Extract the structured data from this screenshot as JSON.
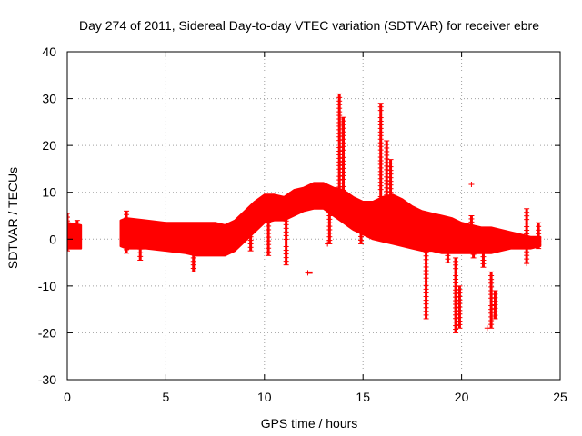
{
  "chart_data": {
    "type": "scatter",
    "title": "Day 274 of 2011, Sidereal Day-to-day VTEC variation (SDTVAR) for receiver ebre",
    "xlabel": "GPS time / hours",
    "ylabel": "SDTVAR / TECUs",
    "xlim": [
      0,
      25
    ],
    "ylim": [
      -30,
      40
    ],
    "xticks": [
      0,
      5,
      10,
      15,
      20,
      25
    ],
    "yticks": [
      -30,
      -20,
      -10,
      0,
      10,
      20,
      30,
      40
    ],
    "xtick_labels": [
      "0",
      "5",
      "10",
      "15",
      "20",
      "25"
    ],
    "ytick_labels": [
      "-30",
      "-20",
      "-10",
      "0",
      "10",
      "20",
      "30",
      "40"
    ],
    "grid": true,
    "marker": "+",
    "color": "#ff0000",
    "series": [
      {
        "name": "SDTVAR",
        "band": {
          "x": [
            0.0,
            0.7,
            2.7,
            3.0,
            4.0,
            5.0,
            6.0,
            6.5,
            7.0,
            7.5,
            8.0,
            8.5,
            9.0,
            9.5,
            10.0,
            10.5,
            11.0,
            11.5,
            12.0,
            12.5,
            13.0,
            13.5,
            14.0,
            14.5,
            15.0,
            15.5,
            16.0,
            16.5,
            17.0,
            17.5,
            18.0,
            18.5,
            19.0,
            19.5,
            20.0,
            20.5,
            21.0,
            21.5,
            22.0,
            22.5,
            23.0,
            23.5,
            24.0
          ],
          "upper": [
            3.5,
            3.0,
            4.0,
            4.5,
            4.0,
            3.5,
            3.5,
            3.5,
            3.5,
            3.5,
            3.0,
            4.0,
            6.0,
            8.0,
            9.5,
            9.5,
            9.0,
            10.5,
            11.0,
            12.0,
            12.0,
            11.0,
            10.5,
            9.0,
            8.0,
            8.0,
            9.0,
            9.5,
            8.5,
            7.0,
            6.0,
            5.5,
            5.0,
            4.5,
            3.5,
            3.0,
            2.5,
            2.5,
            2.0,
            1.5,
            1.0,
            0.5,
            0.5
          ],
          "lower": [
            -2.0,
            -2.0,
            -1.5,
            -2.0,
            -2.0,
            -2.5,
            -3.0,
            -3.5,
            -3.5,
            -3.5,
            -3.5,
            -2.5,
            -0.5,
            1.5,
            3.5,
            4.0,
            4.0,
            5.0,
            6.0,
            6.5,
            6.5,
            5.0,
            3.5,
            2.0,
            1.0,
            0.0,
            -0.5,
            -1.0,
            -1.5,
            -2.0,
            -2.5,
            -2.5,
            -3.0,
            -3.0,
            -3.0,
            -3.0,
            -3.0,
            -3.0,
            -2.5,
            -2.0,
            -2.0,
            -2.0,
            -1.5
          ]
        },
        "spikes": [
          {
            "x": 0.0,
            "ymin": -2.5,
            "ymax": 5.5
          },
          {
            "x": 0.5,
            "ymin": -1.0,
            "ymax": 4.0
          },
          {
            "x": 3.0,
            "ymin": -3.0,
            "ymax": 6.0
          },
          {
            "x": 3.7,
            "ymin": -4.5,
            "ymax": 3.5
          },
          {
            "x": 6.4,
            "ymin": -7.0,
            "ymax": 2.0
          },
          {
            "x": 9.3,
            "ymin": -2.5,
            "ymax": 6.5
          },
          {
            "x": 10.2,
            "ymin": -3.5,
            "ymax": 7.5
          },
          {
            "x": 11.1,
            "ymin": -5.5,
            "ymax": 7.0
          },
          {
            "x": 12.3,
            "ymin": -7.3,
            "ymax": -7.0
          },
          {
            "x": 13.3,
            "ymin": -1.0,
            "ymax": 9.5
          },
          {
            "x": 13.8,
            "ymin": 5.0,
            "ymax": 31.0
          },
          {
            "x": 14.0,
            "ymin": 5.0,
            "ymax": 26.0
          },
          {
            "x": 14.9,
            "ymin": -1.0,
            "ymax": 6.0
          },
          {
            "x": 15.9,
            "ymin": 6.0,
            "ymax": 29.0
          },
          {
            "x": 16.2,
            "ymin": 4.0,
            "ymax": 21.0
          },
          {
            "x": 16.4,
            "ymin": 3.0,
            "ymax": 17.0
          },
          {
            "x": 18.2,
            "ymin": -17.0,
            "ymax": -2.0
          },
          {
            "x": 19.3,
            "ymin": -5.0,
            "ymax": 4.0
          },
          {
            "x": 19.7,
            "ymin": -20.0,
            "ymax": -4.0
          },
          {
            "x": 19.9,
            "ymin": -19.0,
            "ymax": -10.0
          },
          {
            "x": 20.5,
            "ymin": 3.0,
            "ymax": 5.0
          },
          {
            "x": 20.6,
            "ymin": -4.0,
            "ymax": 0.5
          },
          {
            "x": 21.1,
            "ymin": -6.0,
            "ymax": -3.0
          },
          {
            "x": 21.5,
            "ymin": -19.0,
            "ymax": -7.0
          },
          {
            "x": 21.7,
            "ymin": -17.0,
            "ymax": -11.0
          },
          {
            "x": 23.3,
            "ymin": -5.0,
            "ymax": 6.5
          },
          {
            "x": 23.9,
            "ymin": -2.0,
            "ymax": 3.5
          }
        ],
        "outliers": [
          {
            "x": 12.2,
            "y": -7.2
          },
          {
            "x": 13.2,
            "y": -1.0
          },
          {
            "x": 20.5,
            "y": 11.7
          },
          {
            "x": 21.3,
            "y": -19.0
          },
          {
            "x": 23.3,
            "y": -5.2
          }
        ]
      }
    ]
  }
}
